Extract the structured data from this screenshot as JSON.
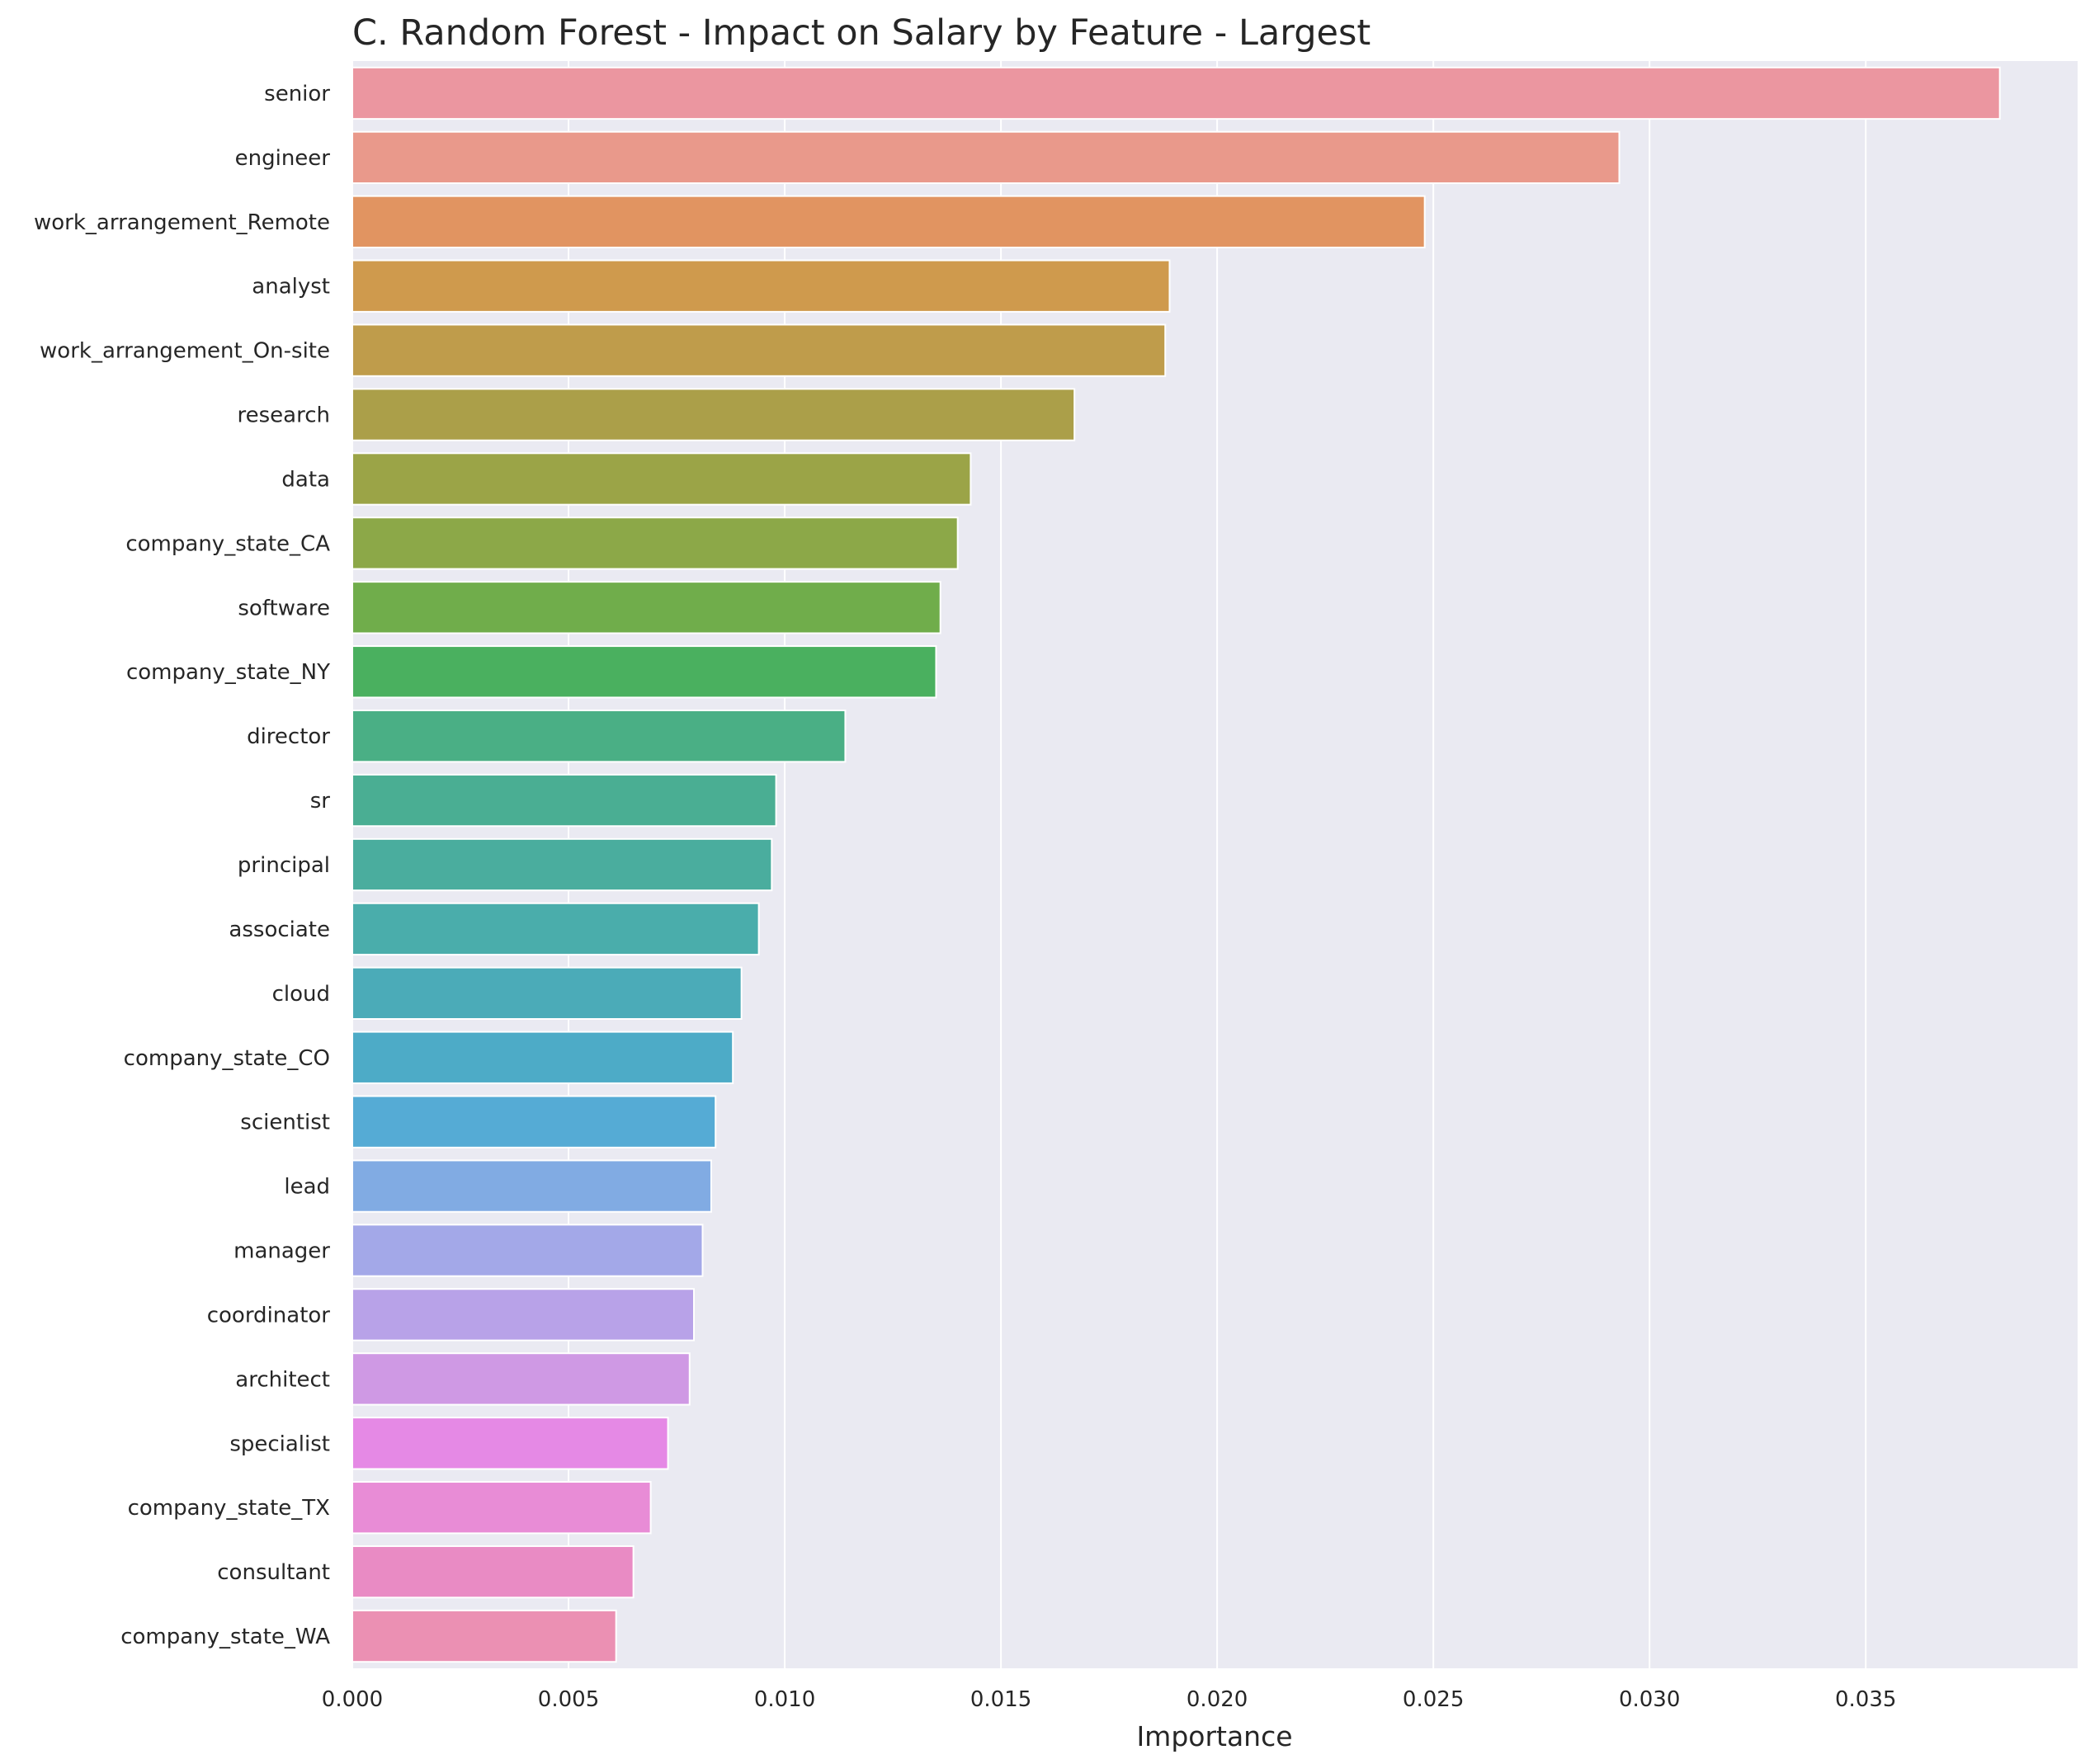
{
  "chart_data": {
    "type": "bar",
    "orientation": "horizontal",
    "title": "C. Random Forest - Impact on Salary by Feature - Largest",
    "xlabel": "Importance",
    "ylabel": "",
    "xlim": [
      0.0,
      0.0399
    ],
    "xticks": [
      "0.000",
      "0.005",
      "0.010",
      "0.015",
      "0.020",
      "0.025",
      "0.030",
      "0.035"
    ],
    "grid": true,
    "background": "#eaeaf2",
    "categories": [
      "senior",
      "engineer",
      "work_arrangement_Remote",
      "analyst",
      "work_arrangement_On-site",
      "research",
      "data",
      "company_state_CA",
      "software",
      "company_state_NY",
      "director",
      "sr",
      "principal",
      "associate",
      "cloud",
      "company_state_CO",
      "scientist",
      "lead",
      "manager",
      "coordinator",
      "architect",
      "specialist",
      "company_state_TX",
      "consultant",
      "company_state_WA"
    ],
    "values": [
      0.0381,
      0.0293,
      0.0248,
      0.0189,
      0.0188,
      0.0167,
      0.0143,
      0.014,
      0.0136,
      0.0135,
      0.0114,
      0.0098,
      0.0097,
      0.0094,
      0.009,
      0.0088,
      0.0084,
      0.0083,
      0.0081,
      0.0079,
      0.0078,
      0.0073,
      0.0069,
      0.0065,
      0.0061
    ],
    "colors": [
      "#eb96a0",
      "#e9998b",
      "#e19461",
      "#cf9a4d",
      "#bf9c4b",
      "#ab9f49",
      "#9ba447",
      "#8ca848",
      "#70ad4b",
      "#4ab05f",
      "#4aaf85",
      "#4aae93",
      "#4aad9e",
      "#4aadab",
      "#4babb8",
      "#4dabc7",
      "#55abd5",
      "#81abe3",
      "#a3a8e8",
      "#b8a2e8",
      "#cf99e4",
      "#e589e5",
      "#e88cd6",
      "#e98bc4",
      "#eb90b3"
    ]
  }
}
